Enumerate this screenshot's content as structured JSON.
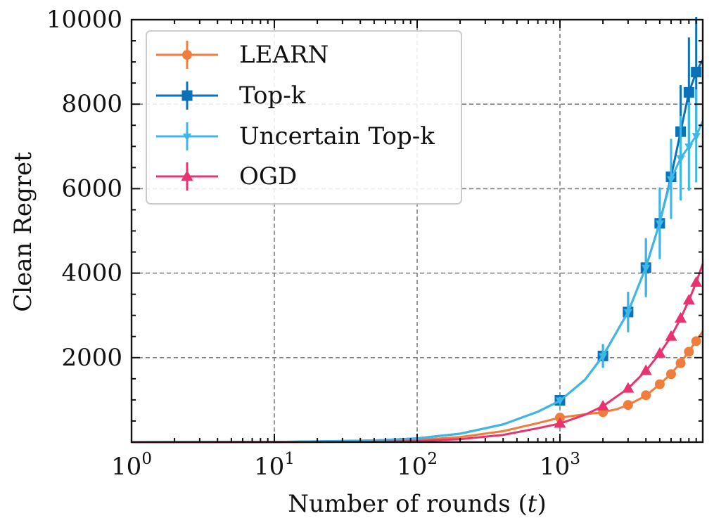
{
  "chart_data": {
    "type": "line",
    "xscale": "log",
    "xlim": [
      1,
      10000
    ],
    "ylim": [
      0,
      10000
    ],
    "xlabel": "Number of rounds (t)",
    "ylabel": "Clean Regret",
    "grid": true,
    "legend_position": "top-left",
    "x_ticks": [
      {
        "value": 1,
        "base": "10",
        "exp": "0"
      },
      {
        "value": 10,
        "base": "10",
        "exp": "1"
      },
      {
        "value": 100,
        "base": "10",
        "exp": "2"
      },
      {
        "value": 1000,
        "base": "10",
        "exp": "3"
      }
    ],
    "y_ticks": [
      {
        "value": 2000,
        "label": "2000"
      },
      {
        "value": 4000,
        "label": "4000"
      },
      {
        "value": 6000,
        "label": "6000"
      },
      {
        "value": 8000,
        "label": "8000"
      },
      {
        "value": 10000,
        "label": "10000"
      }
    ],
    "series": [
      {
        "name": "LEARN",
        "color": "#f07d3c",
        "marker": "circle",
        "curve": [
          [
            1,
            0
          ],
          [
            10,
            5
          ],
          [
            50,
            20
          ],
          [
            100,
            50
          ],
          [
            200,
            120
          ],
          [
            400,
            260
          ],
          [
            700,
            450
          ],
          [
            1000,
            580
          ],
          [
            1500,
            660
          ],
          [
            2000,
            710
          ],
          [
            2500,
            780
          ],
          [
            3000,
            880
          ],
          [
            4000,
            1100
          ],
          [
            5000,
            1370
          ],
          [
            6000,
            1620
          ],
          [
            7000,
            1880
          ],
          [
            8000,
            2150
          ],
          [
            9000,
            2400
          ],
          [
            10000,
            2620
          ]
        ],
        "markers": [
          [
            1000,
            580
          ],
          [
            2000,
            710
          ],
          [
            3000,
            880
          ],
          [
            4000,
            1110
          ],
          [
            5000,
            1370
          ],
          [
            6000,
            1610
          ],
          [
            7000,
            1870
          ],
          [
            8000,
            2140
          ],
          [
            9000,
            2390
          ]
        ],
        "errors": [
          0,
          0,
          0,
          0,
          0,
          0,
          0,
          0,
          0
        ]
      },
      {
        "name": "Top-k",
        "color": "#0b72b9",
        "marker": "square",
        "curve": [
          [
            1,
            0
          ],
          [
            10,
            5
          ],
          [
            50,
            40
          ],
          [
            100,
            90
          ],
          [
            200,
            200
          ],
          [
            400,
            420
          ],
          [
            700,
            720
          ],
          [
            1000,
            980
          ],
          [
            1500,
            1480
          ],
          [
            2000,
            2040
          ],
          [
            3000,
            3080
          ],
          [
            4000,
            4140
          ],
          [
            5000,
            5200
          ],
          [
            6000,
            6280
          ],
          [
            7000,
            7350
          ],
          [
            8000,
            8280
          ],
          [
            9000,
            8760
          ],
          [
            10000,
            9050
          ]
        ],
        "markers": [
          [
            1000,
            990
          ],
          [
            2000,
            2040
          ],
          [
            3000,
            3080
          ],
          [
            4000,
            4130
          ],
          [
            5000,
            5180
          ],
          [
            6000,
            6280
          ],
          [
            7000,
            7350
          ],
          [
            8000,
            8280
          ],
          [
            9000,
            8760
          ]
        ],
        "errors": [
          80,
          280,
          450,
          650,
          800,
          900,
          1100,
          1300,
          1400
        ]
      },
      {
        "name": "Uncertain Top-k",
        "color": "#3cb7e6",
        "marker": "triangle-down",
        "curve": [
          [
            1,
            0
          ],
          [
            10,
            5
          ],
          [
            50,
            40
          ],
          [
            100,
            90
          ],
          [
            200,
            200
          ],
          [
            400,
            420
          ],
          [
            700,
            720
          ],
          [
            1000,
            980
          ],
          [
            1500,
            1480
          ],
          [
            2000,
            2040
          ],
          [
            3000,
            3080
          ],
          [
            4000,
            4140
          ],
          [
            5000,
            5200
          ],
          [
            6000,
            6230
          ],
          [
            7000,
            6720
          ],
          [
            8000,
            7000
          ],
          [
            9000,
            7250
          ],
          [
            10000,
            7600
          ]
        ],
        "markers": [
          [
            1000,
            990
          ],
          [
            2000,
            2040
          ],
          [
            3000,
            3080
          ],
          [
            4000,
            4130
          ],
          [
            5000,
            5180
          ],
          [
            6000,
            6230
          ],
          [
            7000,
            6720
          ],
          [
            8000,
            7000
          ],
          [
            9000,
            7250
          ]
        ],
        "errors": [
          80,
          280,
          480,
          700,
          850,
          950,
          1000,
          1050,
          1100
        ]
      },
      {
        "name": "OGD",
        "color": "#e8336f",
        "marker": "triangle-up",
        "curve": [
          [
            1,
            0
          ],
          [
            10,
            3
          ],
          [
            50,
            10
          ],
          [
            100,
            25
          ],
          [
            200,
            70
          ],
          [
            400,
            170
          ],
          [
            700,
            330
          ],
          [
            1000,
            440
          ],
          [
            1500,
            650
          ],
          [
            2000,
            850
          ],
          [
            3000,
            1270
          ],
          [
            4000,
            1690
          ],
          [
            5000,
            2100
          ],
          [
            6000,
            2500
          ],
          [
            7000,
            2930
          ],
          [
            8000,
            3360
          ],
          [
            9000,
            3780
          ],
          [
            10000,
            4220
          ]
        ],
        "markers": [
          [
            1000,
            440
          ],
          [
            2000,
            850
          ],
          [
            3000,
            1270
          ],
          [
            4000,
            1690
          ],
          [
            5000,
            2100
          ],
          [
            6000,
            2500
          ],
          [
            7000,
            2930
          ],
          [
            8000,
            3360
          ],
          [
            9000,
            3780
          ]
        ],
        "errors": [
          0,
          0,
          0,
          0,
          0,
          0,
          0,
          0,
          0
        ]
      }
    ]
  }
}
